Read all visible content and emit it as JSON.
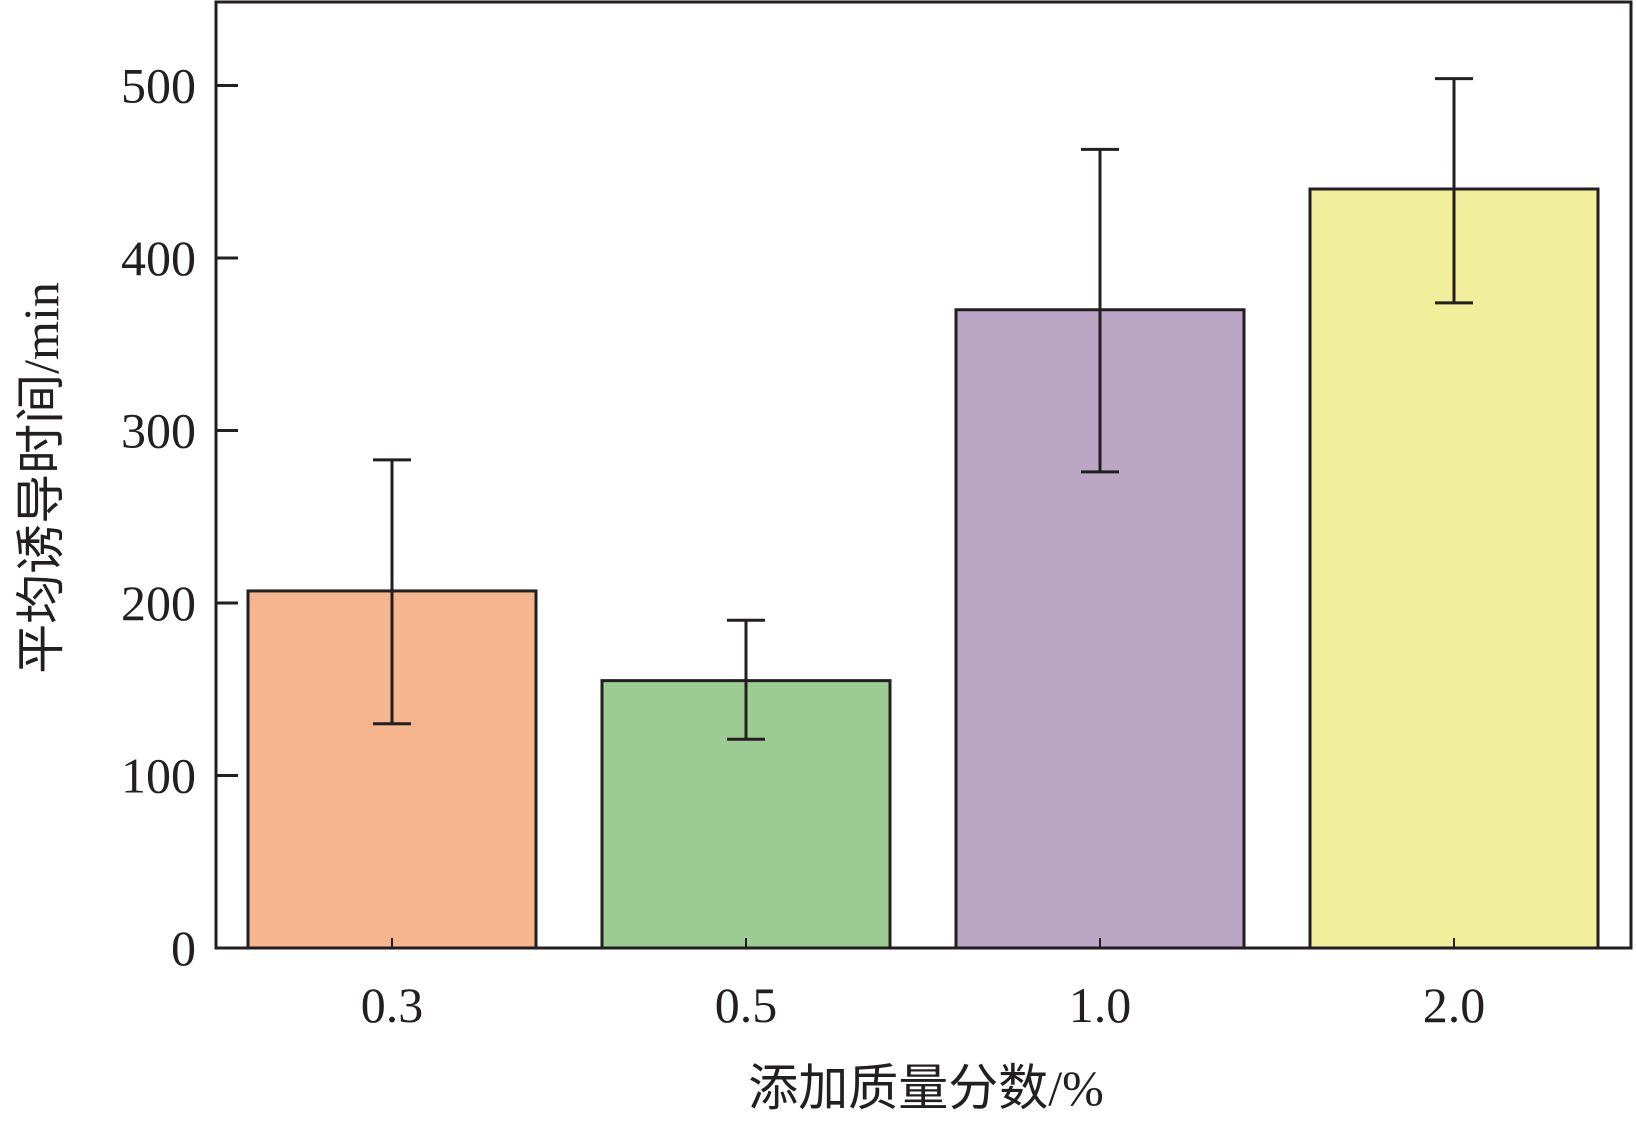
{
  "chart_data": {
    "type": "bar",
    "title": "",
    "xlabel": "添加质量分数/%",
    "ylabel": "平均诱导时间/min",
    "categories": [
      "0.3",
      "0.5",
      "1.0",
      "2.0"
    ],
    "values": [
      207,
      155,
      370,
      440
    ],
    "errors_low": [
      130,
      121,
      276,
      374
    ],
    "errors_high": [
      283,
      190,
      463,
      504
    ],
    "colors": [
      "#f4b58f",
      "#9ccb93",
      "#bba6c6",
      "#f2ef9c"
    ],
    "ylim": [
      0,
      550
    ],
    "yticks": [
      0,
      100,
      200,
      300,
      400,
      500
    ],
    "grid": false,
    "legend": "none"
  }
}
